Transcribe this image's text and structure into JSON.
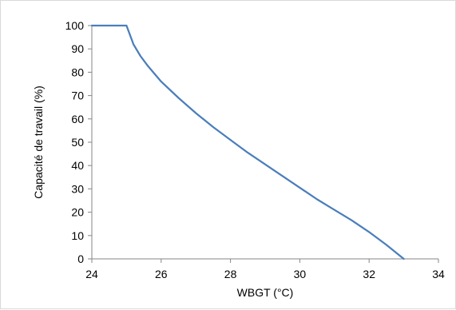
{
  "chart_data": {
    "type": "line",
    "title": "",
    "xlabel": "WBGT (°C)",
    "ylabel": "Capacité de travail (%)",
    "xlim": [
      24,
      34
    ],
    "ylim": [
      0,
      100
    ],
    "xticks": [
      24,
      26,
      28,
      30,
      32,
      34
    ],
    "yticks": [
      0,
      10,
      20,
      30,
      40,
      50,
      60,
      70,
      80,
      90,
      100
    ],
    "grid": false,
    "legend": "none",
    "series_color": "#4a7ebb",
    "series": [
      {
        "x": [
          24,
          25.0,
          25.2,
          25.4,
          25.6,
          25.8,
          26.0,
          26.5,
          27.0,
          27.5,
          28.0,
          28.5,
          29.0,
          29.5,
          30.0,
          30.5,
          31.0,
          31.5,
          32.0,
          32.5,
          33.0
        ],
        "y": [
          100,
          100,
          92,
          87,
          83,
          79.5,
          76,
          69,
          62.5,
          56.5,
          51,
          45.5,
          40.5,
          35.5,
          30.5,
          25.5,
          21,
          16.5,
          11.5,
          6,
          0
        ]
      }
    ]
  }
}
